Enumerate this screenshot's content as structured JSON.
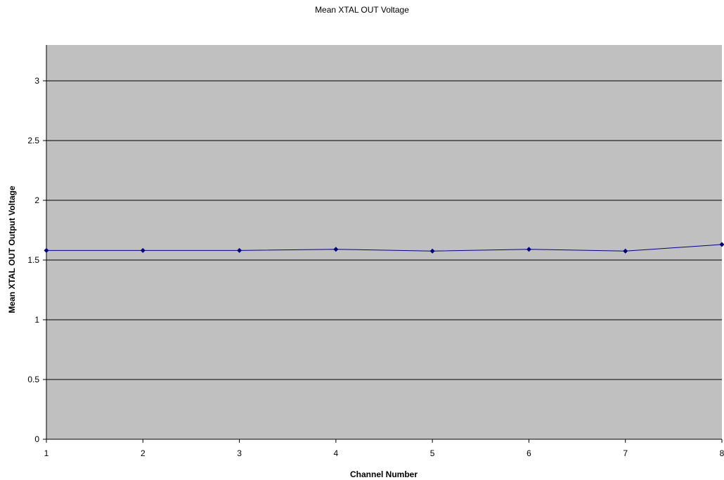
{
  "chart_data": {
    "type": "line",
    "title": "Mean XTAL OUT Voltage",
    "xlabel": "Channel Number",
    "ylabel": "Mean XTAL  OUT Output Voltage",
    "x": [
      1,
      2,
      3,
      4,
      5,
      6,
      7,
      8
    ],
    "xlim": [
      1,
      8
    ],
    "ylim": [
      0,
      3.3
    ],
    "x_ticks": [
      "1",
      "2",
      "3",
      "4",
      "5",
      "6",
      "7",
      "8"
    ],
    "y_ticks": [
      "0",
      "0.5",
      "1",
      "1.5",
      "2",
      "2.5",
      "3"
    ],
    "grid": "horizontal",
    "legend": "none",
    "series": [
      {
        "values": [
          1.58,
          1.58,
          1.58,
          1.59,
          1.575,
          1.59,
          1.575,
          1.63
        ],
        "marker": "diamond"
      }
    ],
    "colors": {
      "plot_background": "#c0c0c0",
      "series_line": "#000080",
      "gridline": "#000000",
      "axis": "#000000"
    }
  }
}
